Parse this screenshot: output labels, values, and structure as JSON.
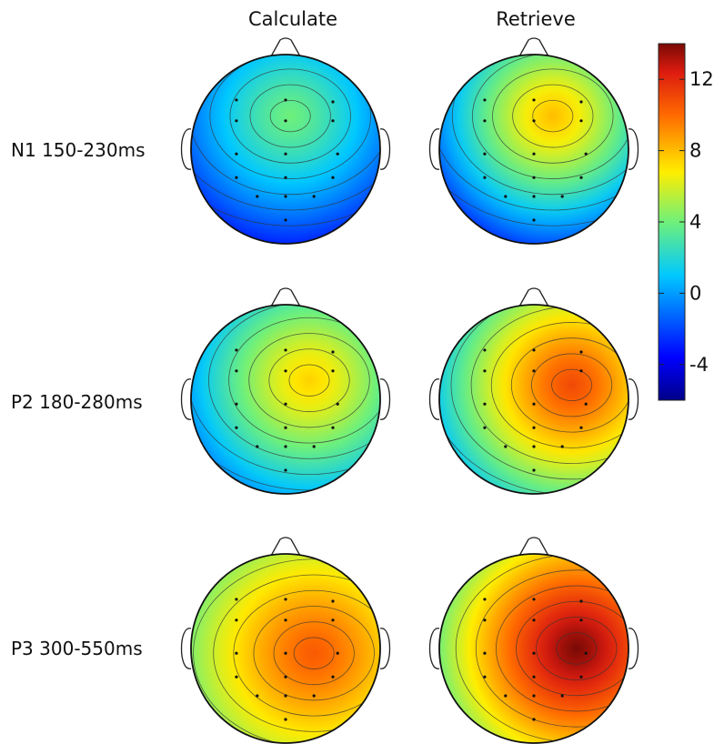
{
  "chart_data": {
    "type": "heatmap",
    "columns": [
      "Calculate",
      "Retrieve"
    ],
    "rows": [
      "N1 150-230ms",
      "P2 180-280ms",
      "P3 300-550ms"
    ],
    "colorbar": {
      "ticks": [
        "12",
        "8",
        "4",
        "0",
        "-4"
      ],
      "tick_values": [
        12,
        8,
        4,
        0,
        -4
      ],
      "range": [
        -6,
        14
      ],
      "colormap": "jet"
    },
    "maps": [
      {
        "row": "N1 150-230ms",
        "column": "Calculate",
        "peak": 4,
        "min": -5
      },
      {
        "row": "N1 150-230ms",
        "column": "Retrieve",
        "peak": 8,
        "min": -5
      },
      {
        "row": "P2 180-280ms",
        "column": "Calculate",
        "peak": 7.5,
        "min": -3
      },
      {
        "row": "P2 180-280ms",
        "column": "Retrieve",
        "peak": 11,
        "min": -1
      },
      {
        "row": "P3 300-550ms",
        "column": "Calculate",
        "peak": 10.5,
        "min": 2
      },
      {
        "row": "P3 300-550ms",
        "column": "Retrieve",
        "peak": 14,
        "min": 2
      }
    ]
  }
}
